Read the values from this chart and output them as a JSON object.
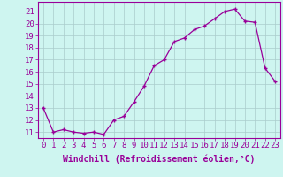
{
  "x": [
    0,
    1,
    2,
    3,
    4,
    5,
    6,
    7,
    8,
    9,
    10,
    11,
    12,
    13,
    14,
    15,
    16,
    17,
    18,
    19,
    20,
    21,
    22,
    23
  ],
  "y": [
    13,
    11,
    11.2,
    11,
    10.9,
    11,
    10.8,
    12,
    12.3,
    13.5,
    14.8,
    16.5,
    17,
    18.5,
    18.8,
    19.5,
    19.8,
    20.4,
    21.0,
    21.2,
    20.2,
    20.1,
    16.3,
    15.2
  ],
  "line_color": "#990099",
  "marker": "+",
  "marker_size": 3,
  "marker_lw": 1.0,
  "bg_color": "#cef5f0",
  "grid_color": "#aacccc",
  "xlabel": "Windchill (Refroidissement éolien,°C)",
  "ylabel_ticks": [
    11,
    12,
    13,
    14,
    15,
    16,
    17,
    18,
    19,
    20,
    21
  ],
  "ylim": [
    10.5,
    21.8
  ],
  "xlim": [
    -0.5,
    23.5
  ],
  "label_fontsize": 7,
  "tick_fontsize": 6.5
}
